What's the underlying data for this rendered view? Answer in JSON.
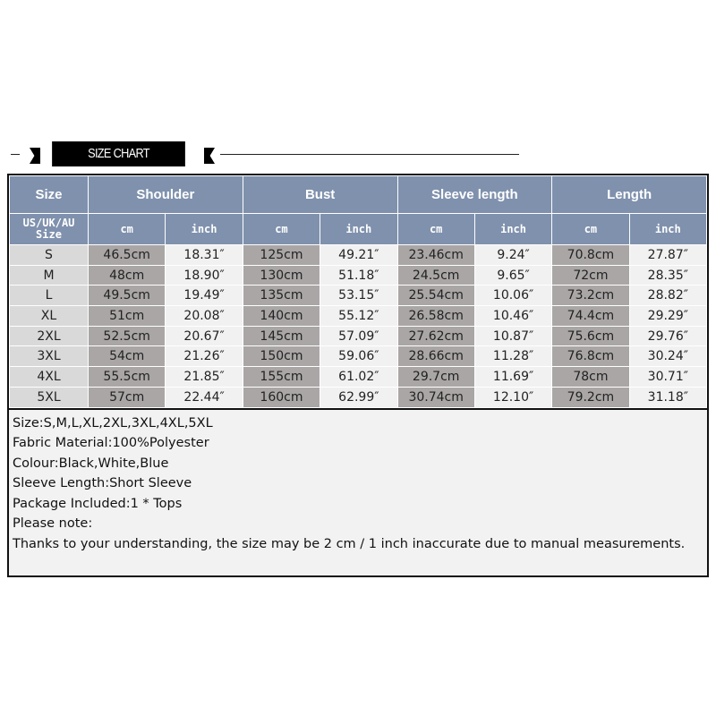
{
  "banner": {
    "title": "SIZE CHART"
  },
  "table": {
    "headers": [
      "Size",
      "Shoulder",
      "Bust",
      "Sleeve length",
      "Length"
    ],
    "size_label": "US/UK/AU Size",
    "units": [
      "cm",
      "inch",
      "cm",
      "inch",
      "cm",
      "inch",
      "cm",
      "inch"
    ],
    "rows": [
      [
        "S",
        "46.5cm",
        "18.31″",
        "125cm",
        "49.21″",
        "23.46cm",
        "9.24″",
        "70.8cm",
        "27.87″"
      ],
      [
        "M",
        "48cm",
        "18.90″",
        "130cm",
        "51.18″",
        "24.5cm",
        "9.65″",
        "72cm",
        "28.35″"
      ],
      [
        "L",
        "49.5cm",
        "19.49″",
        "135cm",
        "53.15″",
        "25.54cm",
        "10.06″",
        "73.2cm",
        "28.82″"
      ],
      [
        "XL",
        "51cm",
        "20.08″",
        "140cm",
        "55.12″",
        "26.58cm",
        "10.46″",
        "74.4cm",
        "29.29″"
      ],
      [
        "2XL",
        "52.5cm",
        "20.67″",
        "145cm",
        "57.09″",
        "27.62cm",
        "10.87″",
        "75.6cm",
        "29.76″"
      ],
      [
        "3XL",
        "54cm",
        "21.26″",
        "150cm",
        "59.06″",
        "28.66cm",
        "11.28″",
        "76.8cm",
        "30.24″"
      ],
      [
        "4XL",
        "55.5cm",
        "21.85″",
        "155cm",
        "61.02″",
        "29.7cm",
        "11.69″",
        "78cm",
        "30.71″"
      ],
      [
        "5XL",
        "57cm",
        "22.44″",
        "160cm",
        "62.99″",
        "30.74cm",
        "12.10″",
        "79.2cm",
        "31.18″"
      ]
    ]
  },
  "notes": [
    "Size:S,M,L,XL,2XL,3XL,4XL,5XL",
    "Fabric Material:100%Polyester",
    "Colour:Black,White,Blue",
    "Sleeve Length:Short Sleeve",
    "Package Included:1 * Tops",
    "Please note:",
    "Thanks to your understanding, the size may be 2 cm / 1 inch inaccurate due to manual measurements."
  ],
  "colors": {
    "header": "#7f91ad",
    "cm_cell": "#aaa6a6",
    "inch_cell": "#f1f1f1",
    "size_cell": "#d9d9d9"
  }
}
